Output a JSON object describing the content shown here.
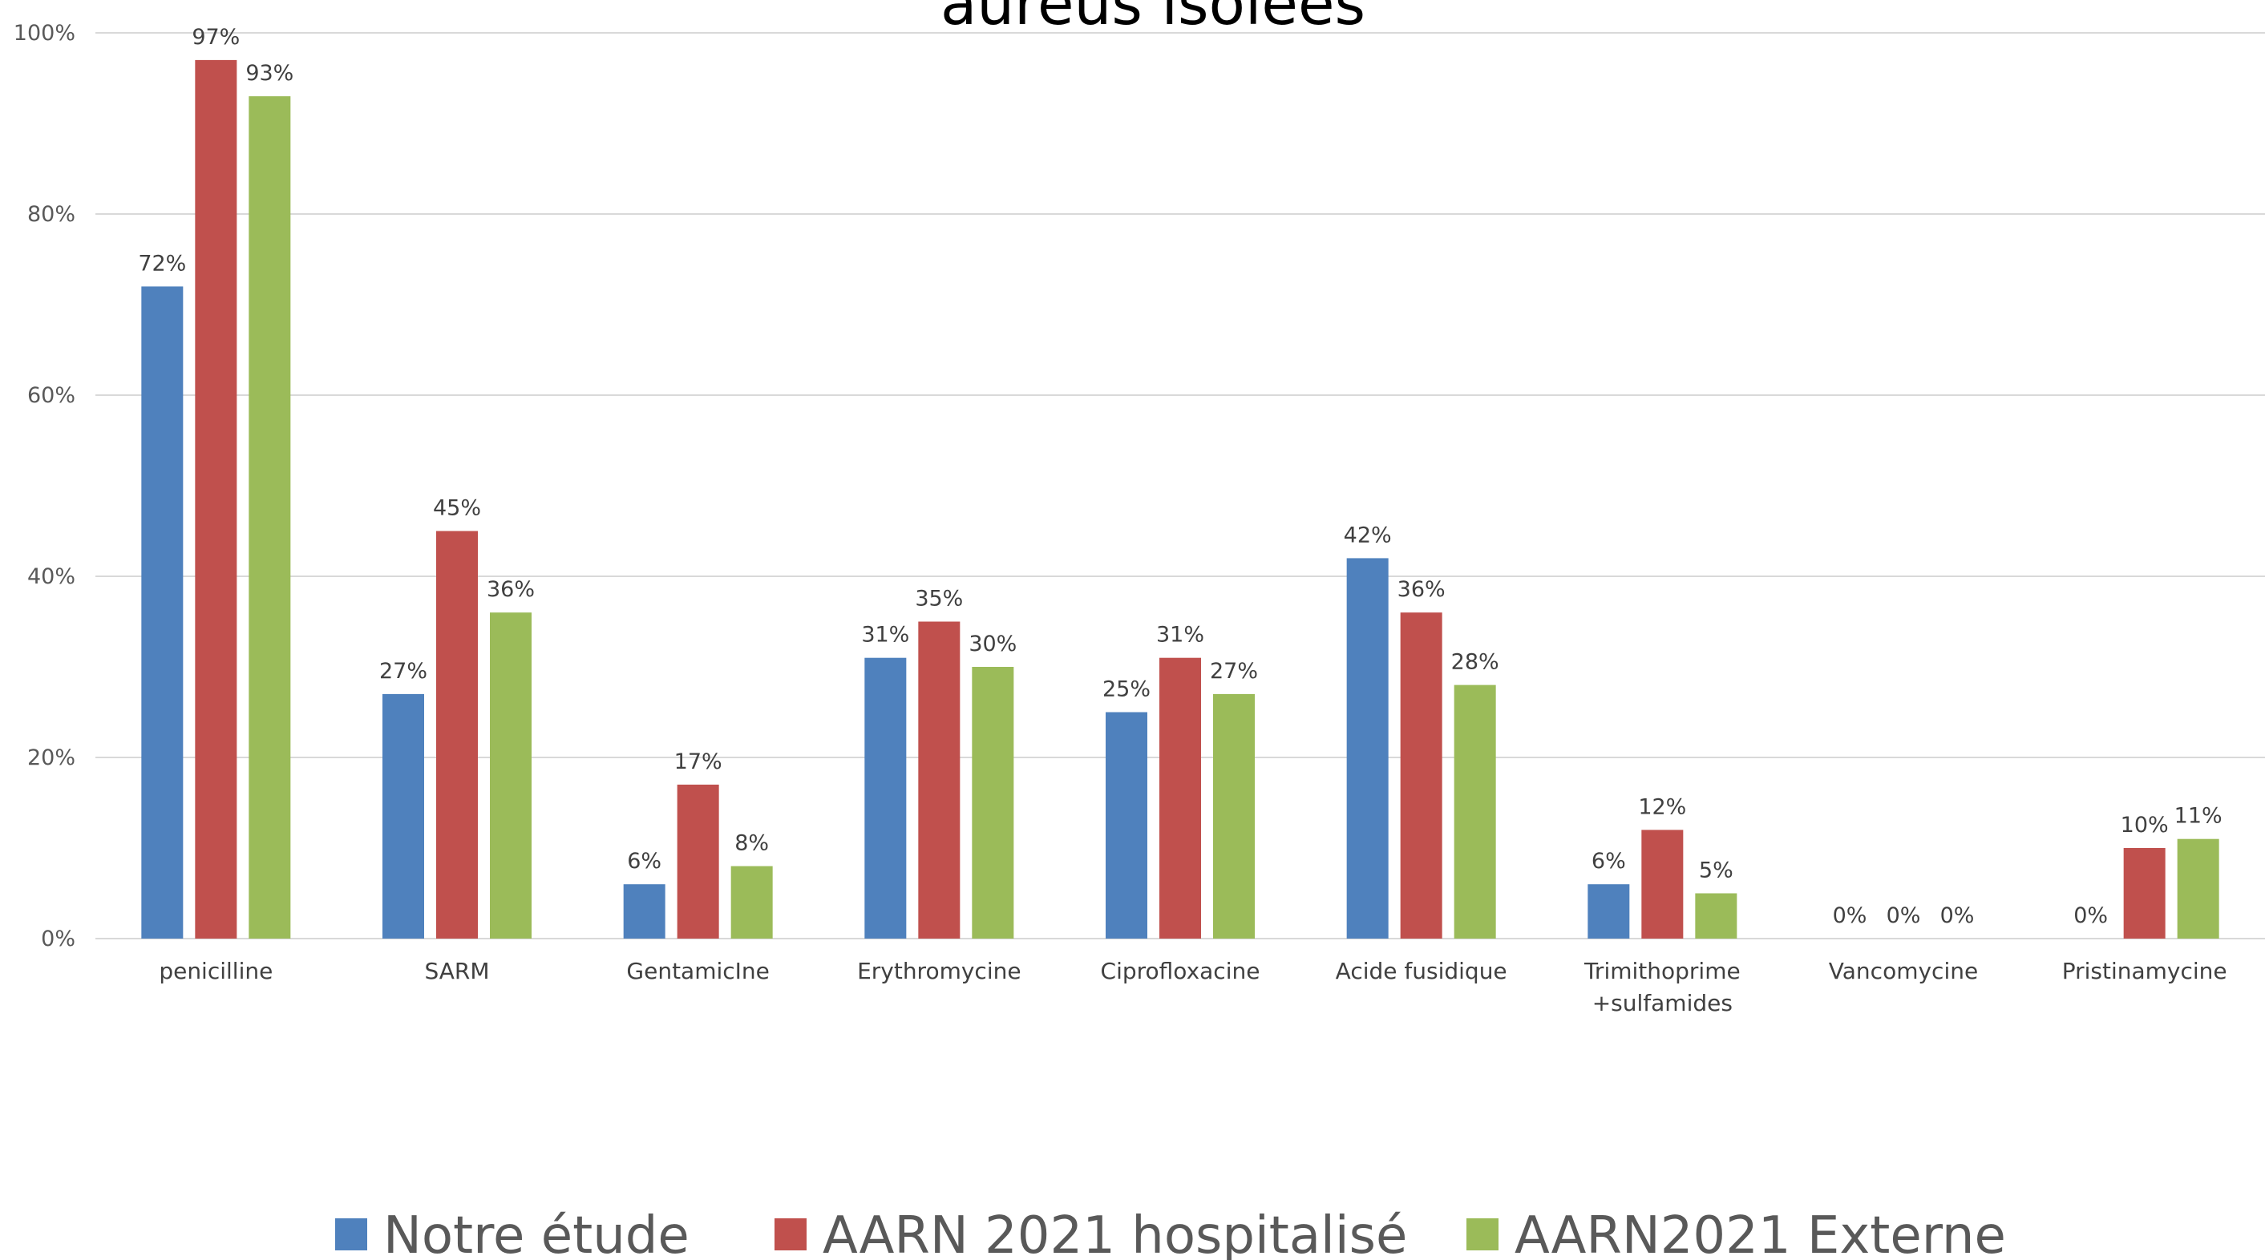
{
  "chart_data": {
    "type": "bar",
    "title": "aureus isolées",
    "categories": [
      "penicilline",
      "SARM",
      "GentamicIne",
      "Erythromycine",
      "Ciprofloxacine",
      "Acide fusidique",
      "Trimithoprime +sulfamides",
      "Vancomycine",
      "Pristinamycine"
    ],
    "series": [
      {
        "name": "Notre étude",
        "color": "#4f81bd",
        "values": [
          72,
          27,
          6,
          31,
          25,
          42,
          6,
          0,
          0
        ],
        "value_labels": [
          "72%",
          "27%",
          "6%",
          "31%",
          "25%",
          "42%",
          "6%",
          "0%",
          "0%"
        ]
      },
      {
        "name": "AARN 2021 hospitalisé",
        "color": "#c0504d",
        "values": [
          97,
          45,
          17,
          35,
          31,
          36,
          12,
          0,
          10
        ],
        "value_labels": [
          "97%",
          "45%",
          "17%",
          "35%",
          "31%",
          "36%",
          "12%",
          "0%",
          "10%"
        ]
      },
      {
        "name": "AARN2021 Externe",
        "color": "#9bbb59",
        "values": [
          93,
          36,
          8,
          30,
          27,
          28,
          5,
          0,
          11
        ],
        "value_labels": [
          "93%",
          "36%",
          "8%",
          "30%",
          "27%",
          "28%",
          "5%",
          "0%",
          "11%"
        ]
      }
    ],
    "ylim": [
      0,
      100
    ],
    "yticks": [
      {
        "value": 0,
        "label": "0%"
      },
      {
        "value": 20,
        "label": "20%"
      },
      {
        "value": 40,
        "label": "40%"
      },
      {
        "value": 60,
        "label": "60%"
      },
      {
        "value": 80,
        "label": "80%"
      },
      {
        "value": 100,
        "label": "100%"
      }
    ],
    "grid": true,
    "legend": "bottom"
  }
}
